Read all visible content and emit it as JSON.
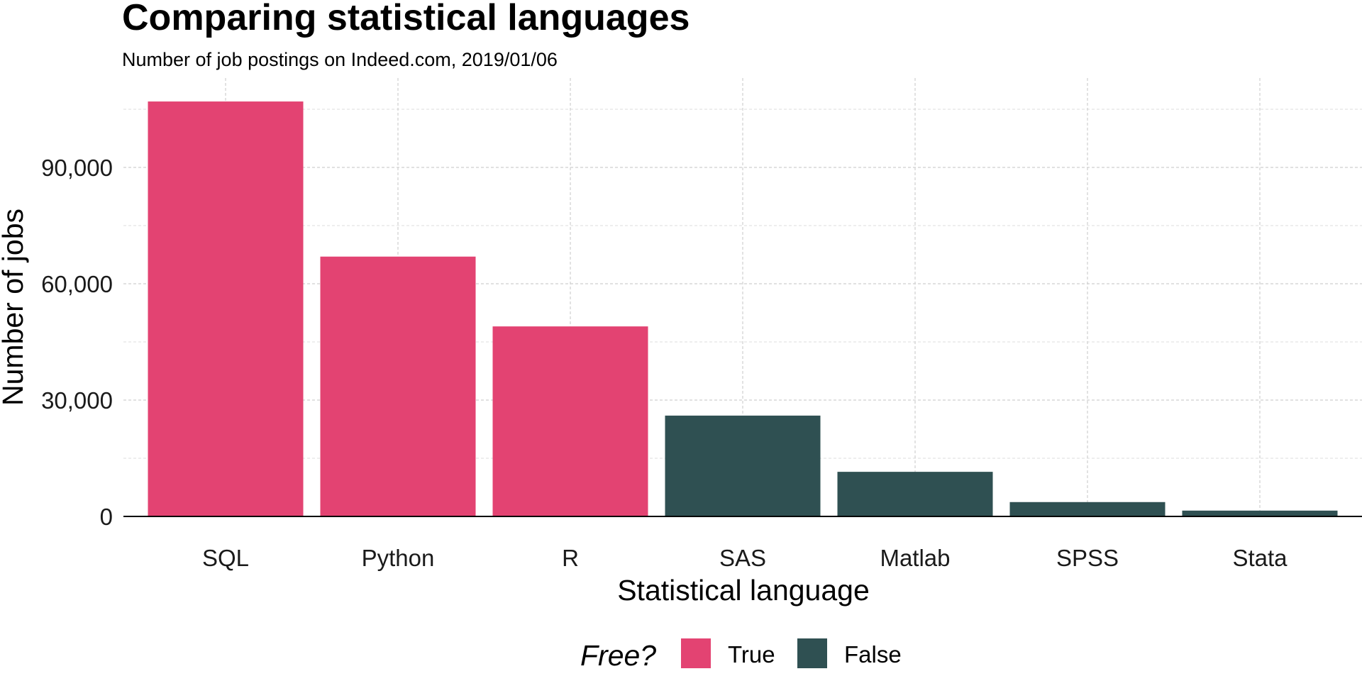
{
  "colors": {
    "true": "#E34372",
    "false": "#2F5052",
    "axis": "#000000",
    "grid": "#cfcfcf"
  },
  "chart_data": {
    "type": "bar",
    "title": "Comparing statistical languages",
    "subtitle": "Number of job postings on Indeed.com, 2019/01/06",
    "xlabel": "Statistical language",
    "ylabel": "Number of jobs",
    "categories": [
      "SQL",
      "Python",
      "R",
      "SAS",
      "Matlab",
      "SPSS",
      "Stata"
    ],
    "values": [
      107000,
      67000,
      49000,
      26000,
      11500,
      3700,
      1500
    ],
    "free": [
      "True",
      "True",
      "True",
      "False",
      "False",
      "False",
      "False"
    ],
    "ylim": [
      0,
      112000
    ],
    "yticks": [
      0,
      30000,
      60000,
      90000
    ],
    "ytick_labels": [
      "0",
      "30,000",
      "60,000",
      "90,000"
    ],
    "grid": true,
    "legend": {
      "title": "Free?",
      "placement": "bottom",
      "entries": [
        {
          "label": "True",
          "key": "true"
        },
        {
          "label": "False",
          "key": "false"
        }
      ]
    }
  }
}
